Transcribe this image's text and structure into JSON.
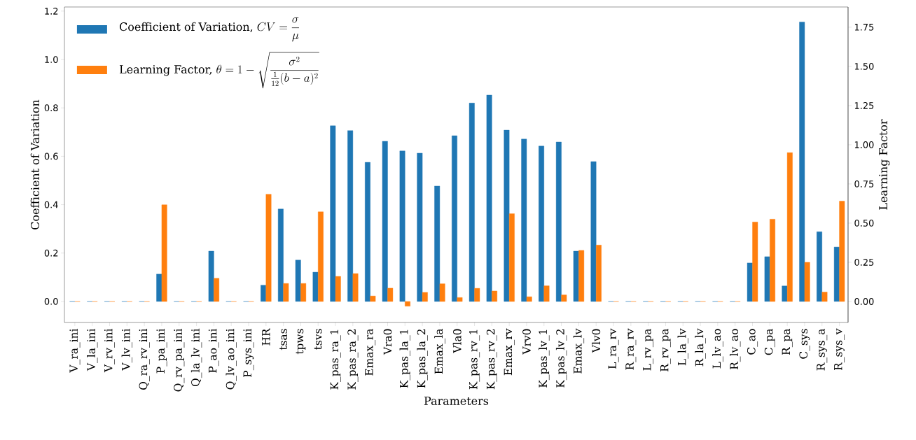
{
  "chart_data": {
    "type": "bar",
    "xlabel": "Parameters",
    "ylabel": "Coefficient of Variation",
    "y2label": "Learning Factor",
    "categories": [
      "V_ra_ini",
      "V_la_ini",
      "V_rv_ini",
      "V_lv_ini",
      "Q_ra_rv_ini",
      "P_pa_ini",
      "Q_rv_pa_ini",
      "Q_la_lv_ini",
      "P_ao_ini",
      "Q_lv_ao_ini",
      "P_sys_ini",
      "HR",
      "tsas",
      "tpws",
      "tsvs",
      "K_pas_ra_1",
      "K_pas_ra_2",
      "Emax_ra",
      "Vra0",
      "K_pas_la_1",
      "K_pas_la_2",
      "Emax_la",
      "Vla0",
      "K_pas_rv_1",
      "K_pas_rv_2",
      "Emax_rv",
      "Vrv0",
      "K_pas_lv_1",
      "K_pas_lv_2",
      "Emax_lv",
      "Vlv0",
      "L_ra_rv",
      "R_ra_rv",
      "L_rv_pa",
      "R_rv_pa",
      "L_la_lv",
      "R_la_lv",
      "L_lv_ao",
      "R_lv_ao",
      "C_ao",
      "C_pa",
      "R_pa",
      "C_sys",
      "R_sys_a",
      "R_sys_v"
    ],
    "series": [
      {
        "name": "\\text{Coefficient of Variation, } CV = \\frac{\\sigma}{\\mu}",
        "color": "#1f77b4",
        "axis": "y",
        "values": [
          0,
          0,
          0,
          0,
          0,
          0.113,
          0,
          0,
          0.208,
          0,
          0,
          0.067,
          0.382,
          0.171,
          0.121,
          0.726,
          0.706,
          0.575,
          0.662,
          0.622,
          0.613,
          0.477,
          0.685,
          0.82,
          0.853,
          0.708,
          0.671,
          0.642,
          0.659,
          0.208,
          0.578,
          0,
          0,
          0,
          0,
          0,
          0,
          0,
          0,
          0.159,
          0.185,
          0.064,
          1.155,
          0.288,
          0.225
        ]
      },
      {
        "name": "\\text{Learning Factor, } \\theta = 1 - \\sqrt{\\frac{\\sigma^2}{\\frac{1}{12}(b-a)^2}}",
        "color": "#ff7f0e",
        "axis": "y2",
        "values": [
          0,
          0,
          0,
          0,
          0,
          0.617,
          0,
          0,
          0.148,
          0,
          0,
          0.684,
          0.115,
          0.115,
          0.572,
          0.16,
          0.178,
          0.035,
          0.085,
          -0.03,
          0.058,
          0.113,
          0.025,
          0.084,
          0.067,
          0.56,
          0.03,
          0.1,
          0.042,
          0.326,
          0.36,
          0,
          0,
          0,
          0,
          0,
          0,
          0,
          0,
          0.507,
          0.525,
          0.95,
          0.25,
          0.06,
          0.64
        ]
      }
    ],
    "ylim": [
      -0.087,
      1.217
    ],
    "yticks": [
      {
        "value": 0,
        "label": "0.0"
      },
      {
        "value": 0.2,
        "label": "0.2"
      },
      {
        "value": 0.4,
        "label": "0.4"
      },
      {
        "value": 0.6,
        "label": "0.6"
      },
      {
        "value": 0.8,
        "label": "0.8"
      },
      {
        "value": 1.0,
        "label": "1.0"
      },
      {
        "value": 1.2,
        "label": "1.2"
      }
    ],
    "y2lim": [
      -0.134,
      1.879
    ],
    "y2ticks": [
      {
        "value": 0,
        "label": "0.00"
      },
      {
        "value": 0.25,
        "label": "0.25"
      },
      {
        "value": 0.5,
        "label": "0.50"
      },
      {
        "value": 0.75,
        "label": "0.75"
      },
      {
        "value": 1.0,
        "label": "1.00"
      },
      {
        "value": 1.25,
        "label": "1.25"
      },
      {
        "value": 1.5,
        "label": "1.50"
      },
      {
        "value": 1.75,
        "label": "1.75"
      }
    ],
    "legend": "top left"
  }
}
